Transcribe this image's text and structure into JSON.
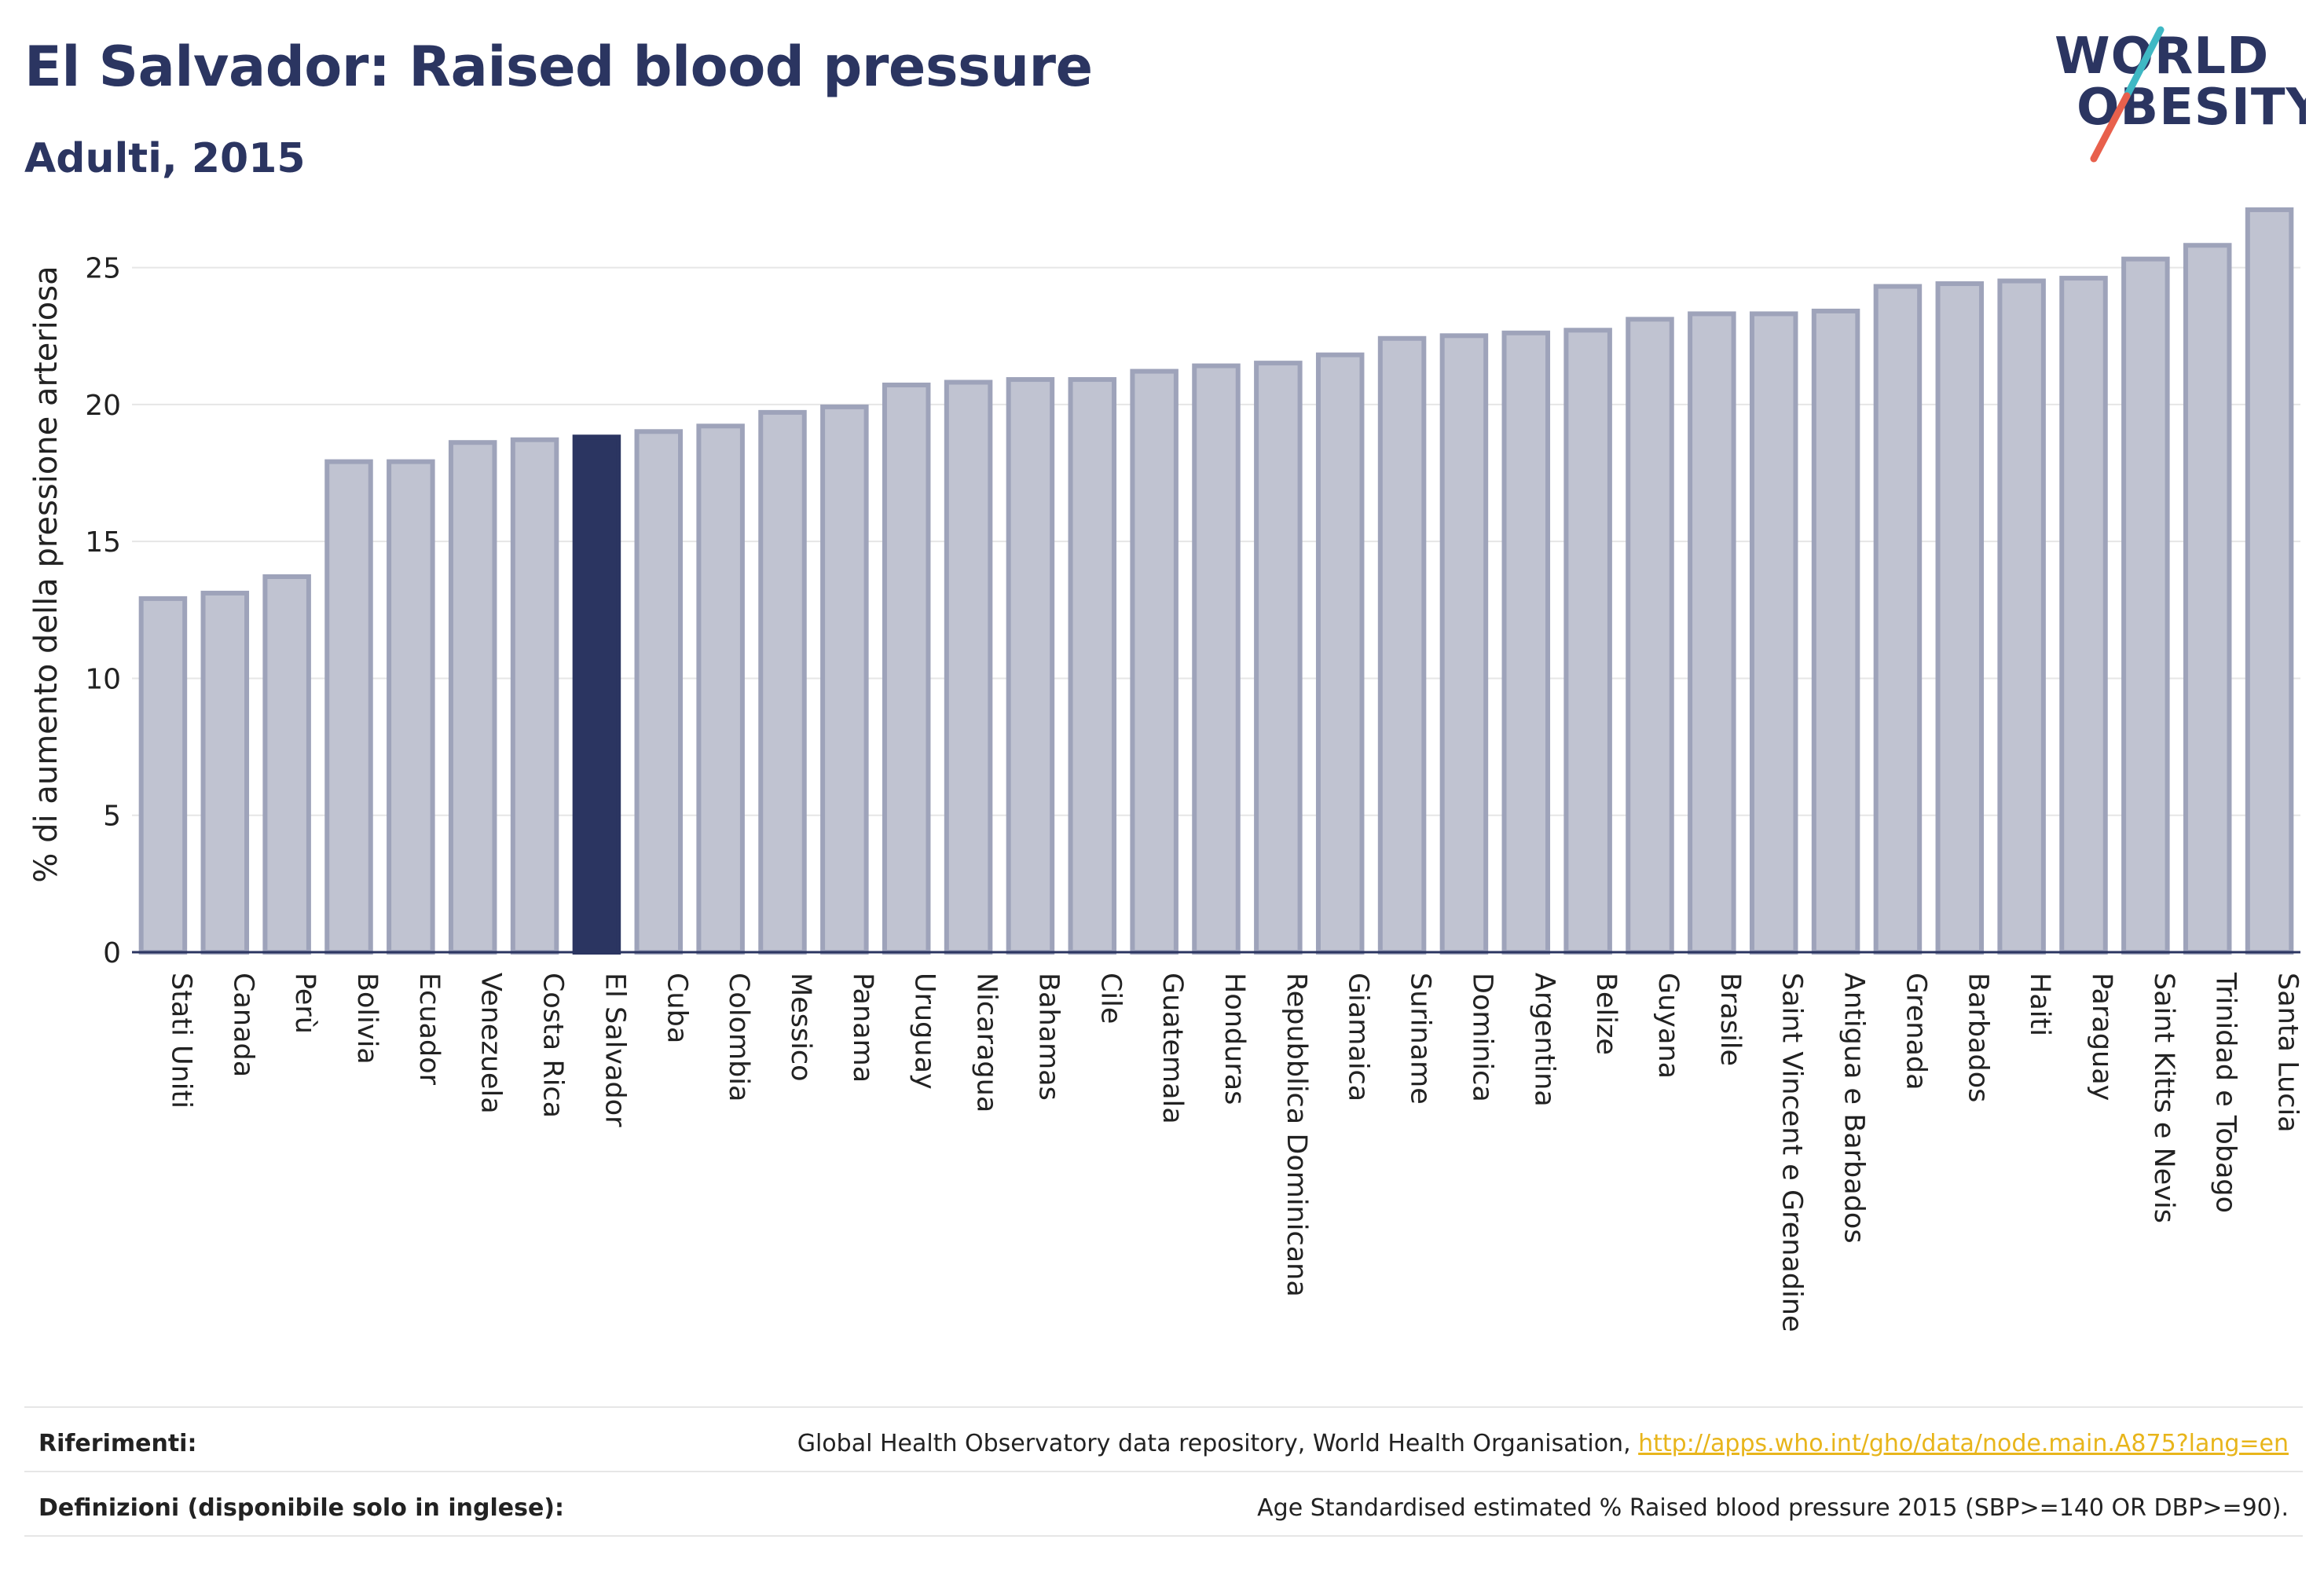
{
  "header": {
    "title": "El Salvador: Raised blood pressure",
    "subtitle": "Adulti, 2015"
  },
  "logo": {
    "line1": "WORLD",
    "line2": "OBESITY",
    "slash_colors": [
      "#3fb8c4",
      "#e8604c"
    ]
  },
  "colors": {
    "bar_fill": "#c0c3d1",
    "bar_stroke": "#9ea3ba",
    "highlight": "#2b3561",
    "grid": "#e6e6e6",
    "axis": "#2b3561",
    "link": "#e8b51b"
  },
  "chart_data": {
    "type": "bar",
    "title": "El Salvador: Raised blood pressure",
    "subtitle": "Adulti, 2015",
    "xlabel": "",
    "ylabel": "% di aumento della pressione arteriosa",
    "ylim": [
      0,
      27.6
    ],
    "yticks": [
      0,
      5,
      10,
      15,
      20,
      25
    ],
    "grid": true,
    "highlight_category": "El Salvador",
    "categories": [
      "Stati Uniti",
      "Canada",
      "Perù",
      "Bolivia",
      "Ecuador",
      "Venezuela",
      "Costa Rica",
      "El Salvador",
      "Cuba",
      "Colombia",
      "Messico",
      "Panama",
      "Uruguay",
      "Nicaragua",
      "Bahamas",
      "Cile",
      "Guatemala",
      "Honduras",
      "Repubblica Dominicana",
      "Giamaica",
      "Suriname",
      "Dominica",
      "Argentina",
      "Belize",
      "Guyana",
      "Brasile",
      "Saint Vincent e Grenadine",
      "Antigua e Barbados",
      "Grenada",
      "Barbados",
      "Haiti",
      "Paraguay",
      "Saint Kitts e Nevis",
      "Trinidad e Tobago",
      "Santa Lucia"
    ],
    "values": [
      13.0,
      13.2,
      13.8,
      18.0,
      18.0,
      18.7,
      18.8,
      18.9,
      19.1,
      19.3,
      19.8,
      20.0,
      20.8,
      20.9,
      21.0,
      21.0,
      21.3,
      21.5,
      21.6,
      21.9,
      22.5,
      22.6,
      22.7,
      22.8,
      23.2,
      23.4,
      23.4,
      23.5,
      24.4,
      24.5,
      24.6,
      24.7,
      25.4,
      25.9,
      27.2
    ]
  },
  "footer": {
    "refs_label": "Riferimenti:",
    "refs_text": "Global Health Observatory data repository, World Health Organisation, ",
    "refs_link": "http://apps.who.int/gho/data/node.main.A875?lang=en",
    "defs_label": "Definizioni (disponibile solo in inglese):",
    "defs_text": "Age Standardised estimated % Raised blood pressure 2015 (SBP>=140 OR DBP>=90)."
  }
}
